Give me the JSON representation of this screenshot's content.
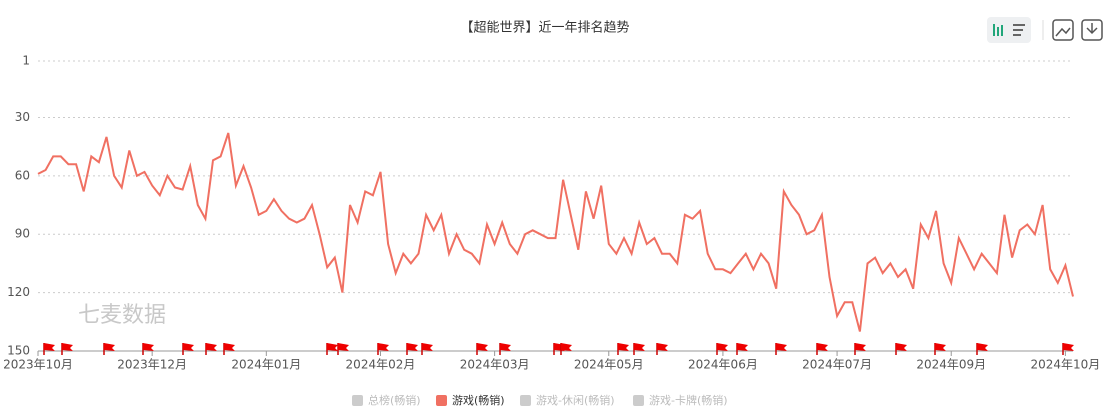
{
  "chart_data": {
    "type": "line",
    "title": "【超能世界】近一年排名趋势",
    "watermark": "七麦数据",
    "categories": [
      "2023年10月",
      null,
      null,
      null,
      null,
      null,
      null,
      null,
      null,
      null,
      null,
      null,
      null,
      null,
      null,
      "2023年12月",
      null,
      null,
      null,
      null,
      null,
      null,
      null,
      null,
      null,
      null,
      null,
      null,
      null,
      null,
      "2024年01月",
      null,
      null,
      null,
      null,
      null,
      null,
      null,
      null,
      null,
      null,
      null,
      null,
      null,
      null,
      "2024年02月",
      null,
      null,
      null,
      null,
      null,
      null,
      null,
      null,
      null,
      null,
      null,
      null,
      null,
      null,
      "2024年03月",
      null,
      null,
      null,
      null,
      null,
      null,
      null,
      null,
      null,
      null,
      null,
      null,
      null,
      null,
      "2024年05月",
      null,
      null,
      null,
      null,
      null,
      null,
      null,
      null,
      null,
      null,
      null,
      null,
      null,
      null,
      "2024年06月",
      null,
      null,
      null,
      null,
      null,
      null,
      null,
      null,
      null,
      null,
      null,
      null,
      null,
      null,
      "2024年07月",
      null,
      null,
      null,
      null,
      null,
      null,
      null,
      null,
      null,
      null,
      null,
      null,
      null,
      null,
      "2024年09月",
      null,
      null,
      null,
      null,
      null,
      null,
      null,
      null,
      null,
      null,
      null,
      null,
      null,
      null,
      "2024年10月",
      null
    ],
    "series": [
      {
        "name": "总榜(畅销)",
        "color": "#cccccc",
        "visible": false
      },
      {
        "name": "游戏(畅销)",
        "color": "#f07062",
        "visible": true,
        "values": [
          59,
          57,
          50,
          50,
          54,
          54,
          68,
          50,
          53,
          40,
          60,
          66,
          47,
          60,
          58,
          65,
          70,
          60,
          66,
          67,
          55,
          75,
          82,
          52,
          50,
          38,
          65,
          55,
          66,
          80,
          78,
          72,
          78,
          82,
          84,
          82,
          75,
          90,
          107,
          102,
          120,
          75,
          84,
          68,
          70,
          58,
          95,
          110,
          100,
          105,
          100,
          80,
          88,
          80,
          100,
          90,
          98,
          100,
          105,
          85,
          95,
          84,
          95,
          100,
          90,
          88,
          90,
          92,
          92,
          62,
          80,
          98,
          68,
          82,
          65,
          95,
          100,
          92,
          100,
          84,
          95,
          92,
          100,
          100,
          105,
          80,
          82,
          78,
          100,
          108,
          108,
          110,
          105,
          100,
          108,
          100,
          105,
          118,
          68,
          75,
          80,
          90,
          88,
          80,
          112,
          132,
          125,
          125,
          140,
          105,
          102,
          110,
          105,
          112,
          108,
          118,
          85,
          92,
          78,
          105,
          115,
          92,
          100,
          108,
          100,
          105,
          110,
          80,
          102,
          88,
          85,
          90,
          75,
          108,
          115,
          106,
          122
        ]
      },
      {
        "name": "游戏-休闲(畅销)",
        "color": "#cccccc",
        "visible": false
      },
      {
        "name": "游戏-卡牌(畅销)",
        "color": "#cccccc",
        "visible": false
      }
    ],
    "inverse_y": true,
    "ylim": [
      1,
      150
    ],
    "yticks": [
      1,
      30,
      60,
      90,
      120,
      150
    ],
    "grid": true
  }
}
